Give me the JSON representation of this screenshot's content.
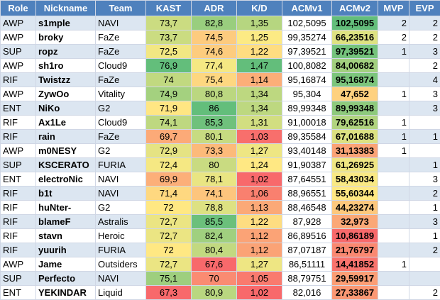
{
  "table": {
    "header": [
      "Role",
      "Nickname",
      "Team",
      "KAST",
      "ADR",
      "K/D",
      "ACMv1",
      "ACMv2",
      "MVP",
      "EVP"
    ],
    "rows": [
      [
        "AWP",
        "s1mple",
        "NAVI",
        "73,7",
        "82,8",
        "1,35",
        "102,5095",
        "102,5095",
        "2",
        "2"
      ],
      [
        "AWP",
        "broky",
        "FaZe",
        "73,7",
        "74,5",
        "1,25",
        "99,35274",
        "66,23516",
        "2",
        "2"
      ],
      [
        "SUP",
        "ropz",
        "FaZe",
        "72,5",
        "74,6",
        "1,22",
        "97,39521",
        "97,39521",
        "1",
        "3"
      ],
      [
        "AWP",
        "sh1ro",
        "Cloud9",
        "76,9",
        "77,4",
        "1,47",
        "100,8082",
        "84,00682",
        null,
        "2"
      ],
      [
        "RIF",
        "Twistzz",
        "FaZe",
        "74",
        "75,4",
        "1,14",
        "95,16874",
        "95,16874",
        null,
        "4"
      ],
      [
        "AWP",
        "ZywOo",
        "Vitality",
        "74,9",
        "80,8",
        "1,34",
        "95,304",
        "47,652",
        "1",
        "3"
      ],
      [
        "ENT",
        "NiKo",
        "G2",
        "71,9",
        "86",
        "1,34",
        "89,99348",
        "89,99348",
        null,
        "3"
      ],
      [
        "RIF",
        "Ax1Le",
        "Cloud9",
        "74,1",
        "85,3",
        "1,31",
        "91,00018",
        "79,62516",
        "1",
        null
      ],
      [
        "RIF",
        "rain",
        "FaZe",
        "69,7",
        "80,1",
        "1,03",
        "89,35584",
        "67,01688",
        "1",
        "1"
      ],
      [
        "AWP",
        "m0NESY",
        "G2",
        "72,9",
        "73,3",
        "1,27",
        "93,40148",
        "31,13383",
        "1",
        null
      ],
      [
        "SUP",
        "KSCERATO",
        "FURIA",
        "72,4",
        "80",
        "1,24",
        "91,90387",
        "61,26925",
        null,
        "1"
      ],
      [
        "ENT",
        "electroNic",
        "NAVI",
        "69,9",
        "78,1",
        "1,02",
        "87,64551",
        "58,43034",
        null,
        "3"
      ],
      [
        "RIF",
        "b1t",
        "NAVI",
        "71,4",
        "74,1",
        "1,06",
        "88,96551",
        "55,60344",
        null,
        "2"
      ],
      [
        "RIF",
        "huNter-",
        "G2",
        "72",
        "78,8",
        "1,13",
        "88,46548",
        "44,23274",
        null,
        "1"
      ],
      [
        "RIF",
        "blameF",
        "Astralis",
        "72,7",
        "85,5",
        "1,22",
        "87,928",
        "32,973",
        null,
        "3"
      ],
      [
        "RIF",
        "stavn",
        "Heroic",
        "72,7",
        "82,4",
        "1,12",
        "86,89516",
        "10,86189",
        null,
        "1"
      ],
      [
        "RIF",
        "yuurih",
        "FURIA",
        "72",
        "80,4",
        "1,12",
        "87,07187",
        "21,76797",
        null,
        "2"
      ],
      [
        "AWP",
        "Jame",
        "Outsiders",
        "72,7",
        "67,6",
        "1,27",
        "86,51111",
        "14,41852",
        "1",
        null
      ],
      [
        "SUP",
        "Perfecto",
        "NAVI",
        "75,1",
        "70",
        "1,05",
        "88,79751",
        "29,59917",
        null,
        null
      ],
      [
        "ENT",
        "YEKINDAR",
        "Liquid",
        "67,3",
        "80,9",
        "1,02",
        "82,016",
        "27,33867",
        null,
        "2"
      ]
    ]
  }
}
